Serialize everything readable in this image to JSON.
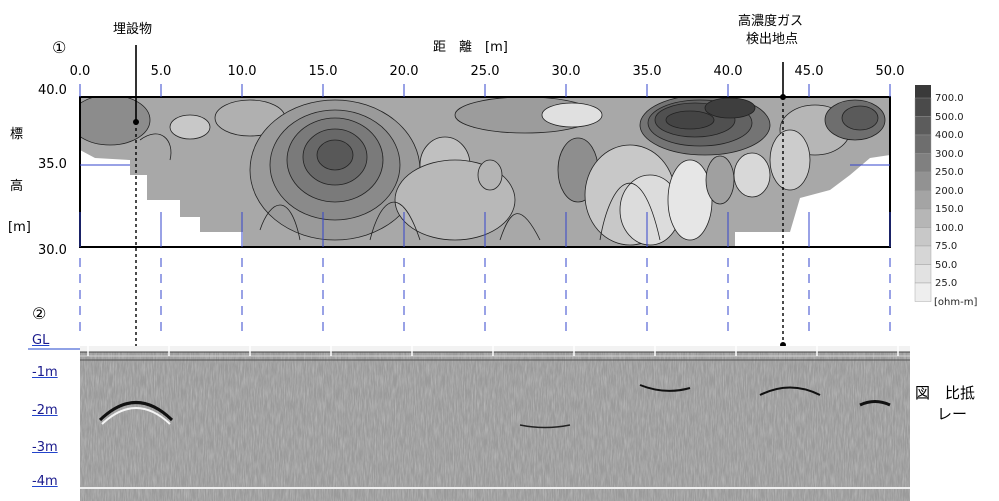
{
  "panel1": {
    "number": "①",
    "xlabel": "距　離　[m]",
    "ylabel_chars": [
      "標",
      "高",
      "[m]"
    ],
    "yticks": [
      "40.0",
      "35.0",
      "30.0"
    ],
    "xticks": [
      "0.0",
      "5.0",
      "10.0",
      "15.0",
      "20.0",
      "25.0",
      "30.0",
      "35.0",
      "40.0",
      "45.0",
      "50.0"
    ]
  },
  "panel2": {
    "number": "②",
    "depth_labels": [
      "GL",
      "-1m",
      "-2m",
      "-3m",
      "-4m"
    ]
  },
  "annotations": {
    "buried_object": "埋設物",
    "gas_line1": "高濃度ガス",
    "gas_line2": "検出地点"
  },
  "legend": {
    "values": [
      "700.0",
      "500.0",
      "400.0",
      "300.0",
      "250.0",
      "200.0",
      "150.0",
      "100.0",
      "75.0",
      "50.0",
      "25.0"
    ],
    "unit": "[ohm-m]",
    "colors": [
      "#4a4a4a",
      "#5c5c5c",
      "#6e6e6e",
      "#808080",
      "#929292",
      "#a4a4a4",
      "#b6b6b6",
      "#c8c8c8",
      "#d6d6d6",
      "#e2e2e2",
      "#eeeeee"
    ]
  },
  "caption": {
    "line1": "図　比抵",
    "line2": "レー"
  },
  "chart_data": [
    {
      "type": "heatmap",
      "xlabel": "距　離　[m]",
      "ylabel": "標高 [m]",
      "xlim": [
        0,
        50
      ],
      "ylim": [
        30,
        40
      ],
      "x_ticks": [
        0,
        5,
        10,
        15,
        20,
        25,
        30,
        35,
        40,
        45,
        50
      ],
      "y_ticks": [
        30,
        35,
        40
      ],
      "levels_ohm_m": [
        25,
        50,
        75,
        100,
        150,
        200,
        250,
        300,
        400,
        500,
        700
      ],
      "unit": "[ohm-m]",
      "markers": [
        {
          "label": "埋設物",
          "x": 3.5,
          "y": 38.5
        },
        {
          "label": "高濃度ガス 検出地点",
          "x": 43.0,
          "y": 39.7
        }
      ]
    },
    {
      "type": "other",
      "depth_labels": [
        "GL",
        "-1m",
        "-2m",
        "-3m",
        "-4m"
      ]
    }
  ]
}
